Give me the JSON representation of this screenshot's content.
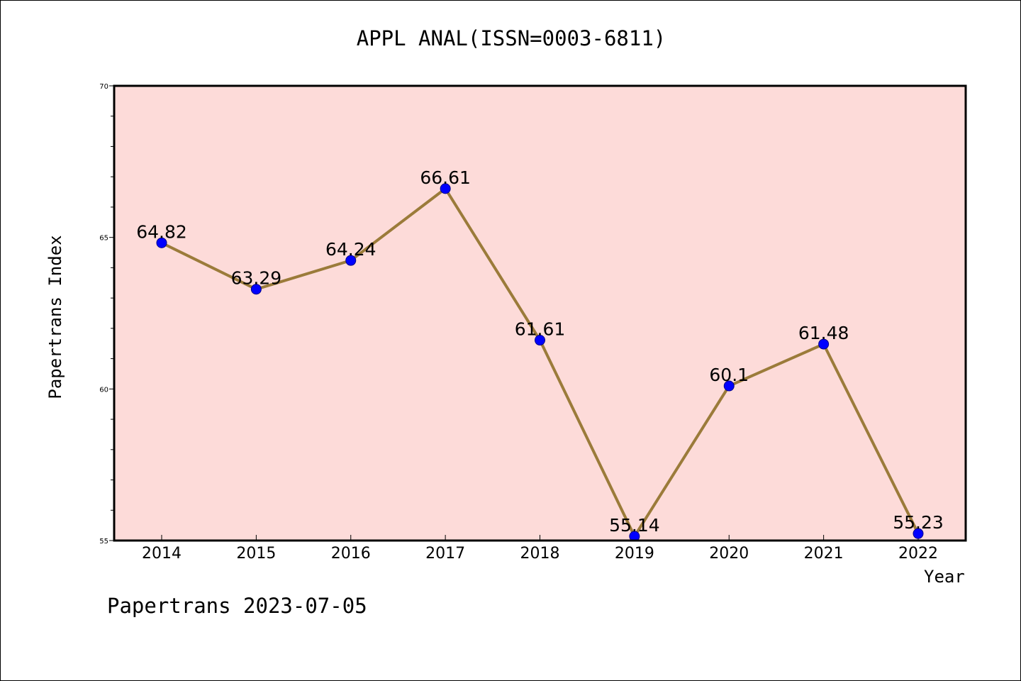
{
  "chart_data": {
    "type": "line",
    "title": "APPL ANAL(ISSN=0003-6811)",
    "xlabel": "Year",
    "ylabel": "Papertrans Index",
    "categories": [
      "2014",
      "2015",
      "2016",
      "2017",
      "2018",
      "2019",
      "2020",
      "2021",
      "2022"
    ],
    "series": [
      {
        "values": [
          64.82,
          63.29,
          64.24,
          66.61,
          61.61,
          55.14,
          60.1,
          61.48,
          55.23
        ],
        "labels": [
          "64.82",
          "63.29",
          "64.24",
          "66.61",
          "61.61",
          "55.14",
          "60.1",
          "61.48",
          "55.23"
        ]
      }
    ],
    "ylim": [
      55,
      70
    ],
    "yticks": [
      "55",
      "60",
      "65",
      "70"
    ],
    "grid": false,
    "legend": "none",
    "colors": {
      "plot_background": "#fddbd9",
      "line": "#9b7b3a",
      "marker": "#0000ff",
      "marker_edge": "#00008b"
    }
  },
  "footer": {
    "note": "Papertrans 2023-07-05"
  }
}
